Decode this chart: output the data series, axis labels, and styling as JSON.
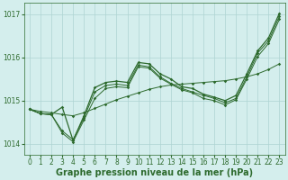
{
  "xlabel": "Graphe pression niveau de la mer (hPa)",
  "x": [
    0,
    1,
    2,
    3,
    4,
    5,
    6,
    7,
    8,
    9,
    10,
    11,
    12,
    13,
    14,
    15,
    16,
    17,
    18,
    19,
    20,
    21,
    22,
    23
  ],
  "line_A": [
    1014.8,
    1014.75,
    1014.72,
    1014.68,
    1014.65,
    1014.72,
    1014.82,
    1014.92,
    1015.02,
    1015.1,
    1015.18,
    1015.26,
    1015.32,
    1015.36,
    1015.38,
    1015.4,
    1015.42,
    1015.44,
    1015.46,
    1015.5,
    1015.55,
    1015.62,
    1015.72,
    1015.85
  ],
  "line_B": [
    1014.8,
    1014.7,
    1014.68,
    1014.3,
    1014.1,
    1014.6,
    1015.2,
    1015.35,
    1015.38,
    1015.35,
    1015.82,
    1015.78,
    1015.55,
    1015.4,
    1015.28,
    1015.2,
    1015.12,
    1015.05,
    1014.95,
    1015.05,
    1015.55,
    1016.1,
    1016.38,
    1016.95
  ],
  "line_C": [
    1014.8,
    1014.7,
    1014.68,
    1014.25,
    1014.05,
    1014.55,
    1015.05,
    1015.28,
    1015.32,
    1015.3,
    1015.78,
    1015.75,
    1015.52,
    1015.38,
    1015.25,
    1015.18,
    1015.05,
    1015.0,
    1014.9,
    1015.02,
    1015.5,
    1016.02,
    1016.32,
    1016.88
  ],
  "line_D": [
    1014.8,
    1014.7,
    1014.68,
    1014.85,
    1014.08,
    1014.65,
    1015.3,
    1015.42,
    1015.45,
    1015.42,
    1015.88,
    1015.85,
    1015.62,
    1015.5,
    1015.32,
    1015.28,
    1015.15,
    1015.08,
    1015.0,
    1015.12,
    1015.62,
    1016.15,
    1016.45,
    1017.02
  ],
  "ylim": [
    1013.75,
    1017.25
  ],
  "yticks": [
    1014,
    1015,
    1016,
    1017
  ],
  "xlim": [
    -0.5,
    23.5
  ],
  "xticks": [
    0,
    1,
    2,
    3,
    4,
    5,
    6,
    7,
    8,
    9,
    10,
    11,
    12,
    13,
    14,
    15,
    16,
    17,
    18,
    19,
    20,
    21,
    22,
    23
  ],
  "bg_color": "#d4eeed",
  "grid_color": "#aed4d2",
  "line_color": "#2d6a2d",
  "tick_fontsize": 5.5,
  "label_fontsize": 7,
  "label_fontweight": "bold"
}
